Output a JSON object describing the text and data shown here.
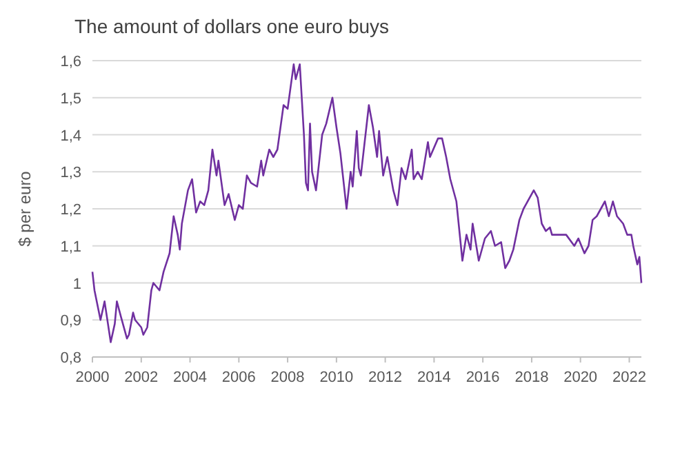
{
  "chart_data": {
    "type": "line",
    "title": "The amount of dollars one euro buys",
    "ylabel": "$ per euro",
    "x": [
      "2000-01",
      "2000-02",
      "2000-05",
      "2000-07",
      "2000-10",
      "2000-12",
      "2001-01",
      "2001-03",
      "2001-06",
      "2001-07",
      "2001-09",
      "2001-10",
      "2002-01",
      "2002-02",
      "2002-04",
      "2002-06",
      "2002-07",
      "2002-10",
      "2002-12",
      "2003-03",
      "2003-05",
      "2003-07",
      "2003-08",
      "2003-09",
      "2003-12",
      "2004-02",
      "2004-04",
      "2004-06",
      "2004-08",
      "2004-10",
      "2004-12",
      "2005-02",
      "2005-03",
      "2005-06",
      "2005-08",
      "2005-11",
      "2006-01",
      "2006-03",
      "2006-05",
      "2006-07",
      "2006-10",
      "2006-12",
      "2007-01",
      "2007-04",
      "2007-06",
      "2007-08",
      "2007-11",
      "2008-01",
      "2008-04",
      "2008-05",
      "2008-07",
      "2008-09",
      "2008-10",
      "2008-11",
      "2008-12",
      "2009-01",
      "2009-03",
      "2009-06",
      "2009-08",
      "2009-11",
      "2010-01",
      "2010-03",
      "2010-06",
      "2010-08",
      "2010-09",
      "2010-11",
      "2010-12",
      "2011-01",
      "2011-05",
      "2011-07",
      "2011-09",
      "2011-10",
      "2011-12",
      "2012-02",
      "2012-05",
      "2012-07",
      "2012-09",
      "2012-11",
      "2013-02",
      "2013-03",
      "2013-05",
      "2013-07",
      "2013-10",
      "2013-11",
      "2014-03",
      "2014-05",
      "2014-07",
      "2014-09",
      "2014-12",
      "2015-03",
      "2015-05",
      "2015-07",
      "2015-08",
      "2015-11",
      "2016-02",
      "2016-05",
      "2016-07",
      "2016-10",
      "2016-12",
      "2017-02",
      "2017-04",
      "2017-07",
      "2017-09",
      "2018-02",
      "2018-04",
      "2018-06",
      "2018-08",
      "2018-10",
      "2018-11",
      "2019-02",
      "2019-06",
      "2019-10",
      "2019-12",
      "2020-03",
      "2020-05",
      "2020-07",
      "2020-09",
      "2021-01",
      "2021-03",
      "2021-05",
      "2021-07",
      "2021-10",
      "2021-12",
      "2022-02",
      "2022-03",
      "2022-05",
      "2022-06",
      "2022-07"
    ],
    "series": [
      {
        "color": "#7030a0",
        "values": [
          1.03,
          0.98,
          0.9,
          0.95,
          0.84,
          0.89,
          0.95,
          0.91,
          0.85,
          0.86,
          0.92,
          0.9,
          0.88,
          0.86,
          0.88,
          0.98,
          1.0,
          0.98,
          1.03,
          1.08,
          1.18,
          1.13,
          1.09,
          1.16,
          1.25,
          1.28,
          1.19,
          1.22,
          1.21,
          1.25,
          1.36,
          1.29,
          1.33,
          1.21,
          1.24,
          1.17,
          1.21,
          1.2,
          1.29,
          1.27,
          1.26,
          1.33,
          1.29,
          1.36,
          1.34,
          1.36,
          1.48,
          1.47,
          1.59,
          1.55,
          1.59,
          1.4,
          1.27,
          1.25,
          1.43,
          1.3,
          1.25,
          1.4,
          1.43,
          1.5,
          1.42,
          1.35,
          1.2,
          1.3,
          1.26,
          1.41,
          1.31,
          1.29,
          1.48,
          1.42,
          1.34,
          1.41,
          1.29,
          1.34,
          1.25,
          1.21,
          1.31,
          1.28,
          1.36,
          1.28,
          1.3,
          1.28,
          1.38,
          1.34,
          1.39,
          1.39,
          1.34,
          1.28,
          1.22,
          1.06,
          1.13,
          1.09,
          1.16,
          1.06,
          1.12,
          1.14,
          1.1,
          1.11,
          1.04,
          1.06,
          1.09,
          1.17,
          1.2,
          1.25,
          1.23,
          1.16,
          1.14,
          1.15,
          1.13,
          1.13,
          1.13,
          1.1,
          1.12,
          1.08,
          1.1,
          1.17,
          1.18,
          1.22,
          1.18,
          1.22,
          1.18,
          1.16,
          1.13,
          1.13,
          1.1,
          1.05,
          1.07,
          1.0
        ]
      }
    ],
    "xlim": [
      "2000-01",
      "2022-07"
    ],
    "xticks": [
      "2000",
      "2002",
      "2004",
      "2006",
      "2008",
      "2010",
      "2012",
      "2014",
      "2016",
      "2018",
      "2020",
      "2022"
    ],
    "ylim": [
      0.8,
      1.6
    ],
    "yticks": [
      {
        "value": 0.8,
        "label": "0,8"
      },
      {
        "value": 0.9,
        "label": "0,9"
      },
      1,
      {
        "value": 1.1,
        "label": "1,1"
      },
      {
        "value": 1.2,
        "label": "1,2"
      },
      {
        "value": 1.3,
        "label": "1,3"
      },
      {
        "value": 1.4,
        "label": "1,4"
      },
      {
        "value": 1.5,
        "label": "1,5"
      },
      {
        "value": 1.6,
        "label": "1,6"
      }
    ],
    "grid": "y"
  }
}
